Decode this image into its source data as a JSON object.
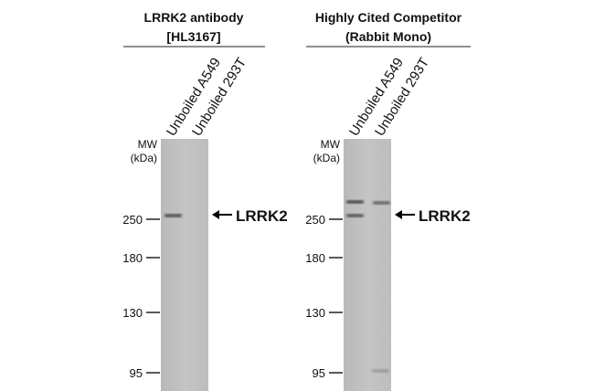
{
  "panels": [
    {
      "title": [
        "LRRK2 antibody",
        "[HL3167]"
      ],
      "lanes": [
        "Unboiled A549",
        "Unboiled  293T"
      ],
      "mw_label": [
        "MW",
        "(kDa)"
      ],
      "markers": [
        250,
        180,
        130,
        95
      ],
      "target": "LRRK2"
    },
    {
      "title": [
        "Highly Cited Competitor",
        "(Rabbit Mono)"
      ],
      "lanes": [
        "Unboiled A549",
        "Unboiled  293T"
      ],
      "mw_label": [
        "MW",
        "(kDa)"
      ],
      "markers": [
        250,
        180,
        130,
        95
      ],
      "target": "LRRK2"
    }
  ]
}
